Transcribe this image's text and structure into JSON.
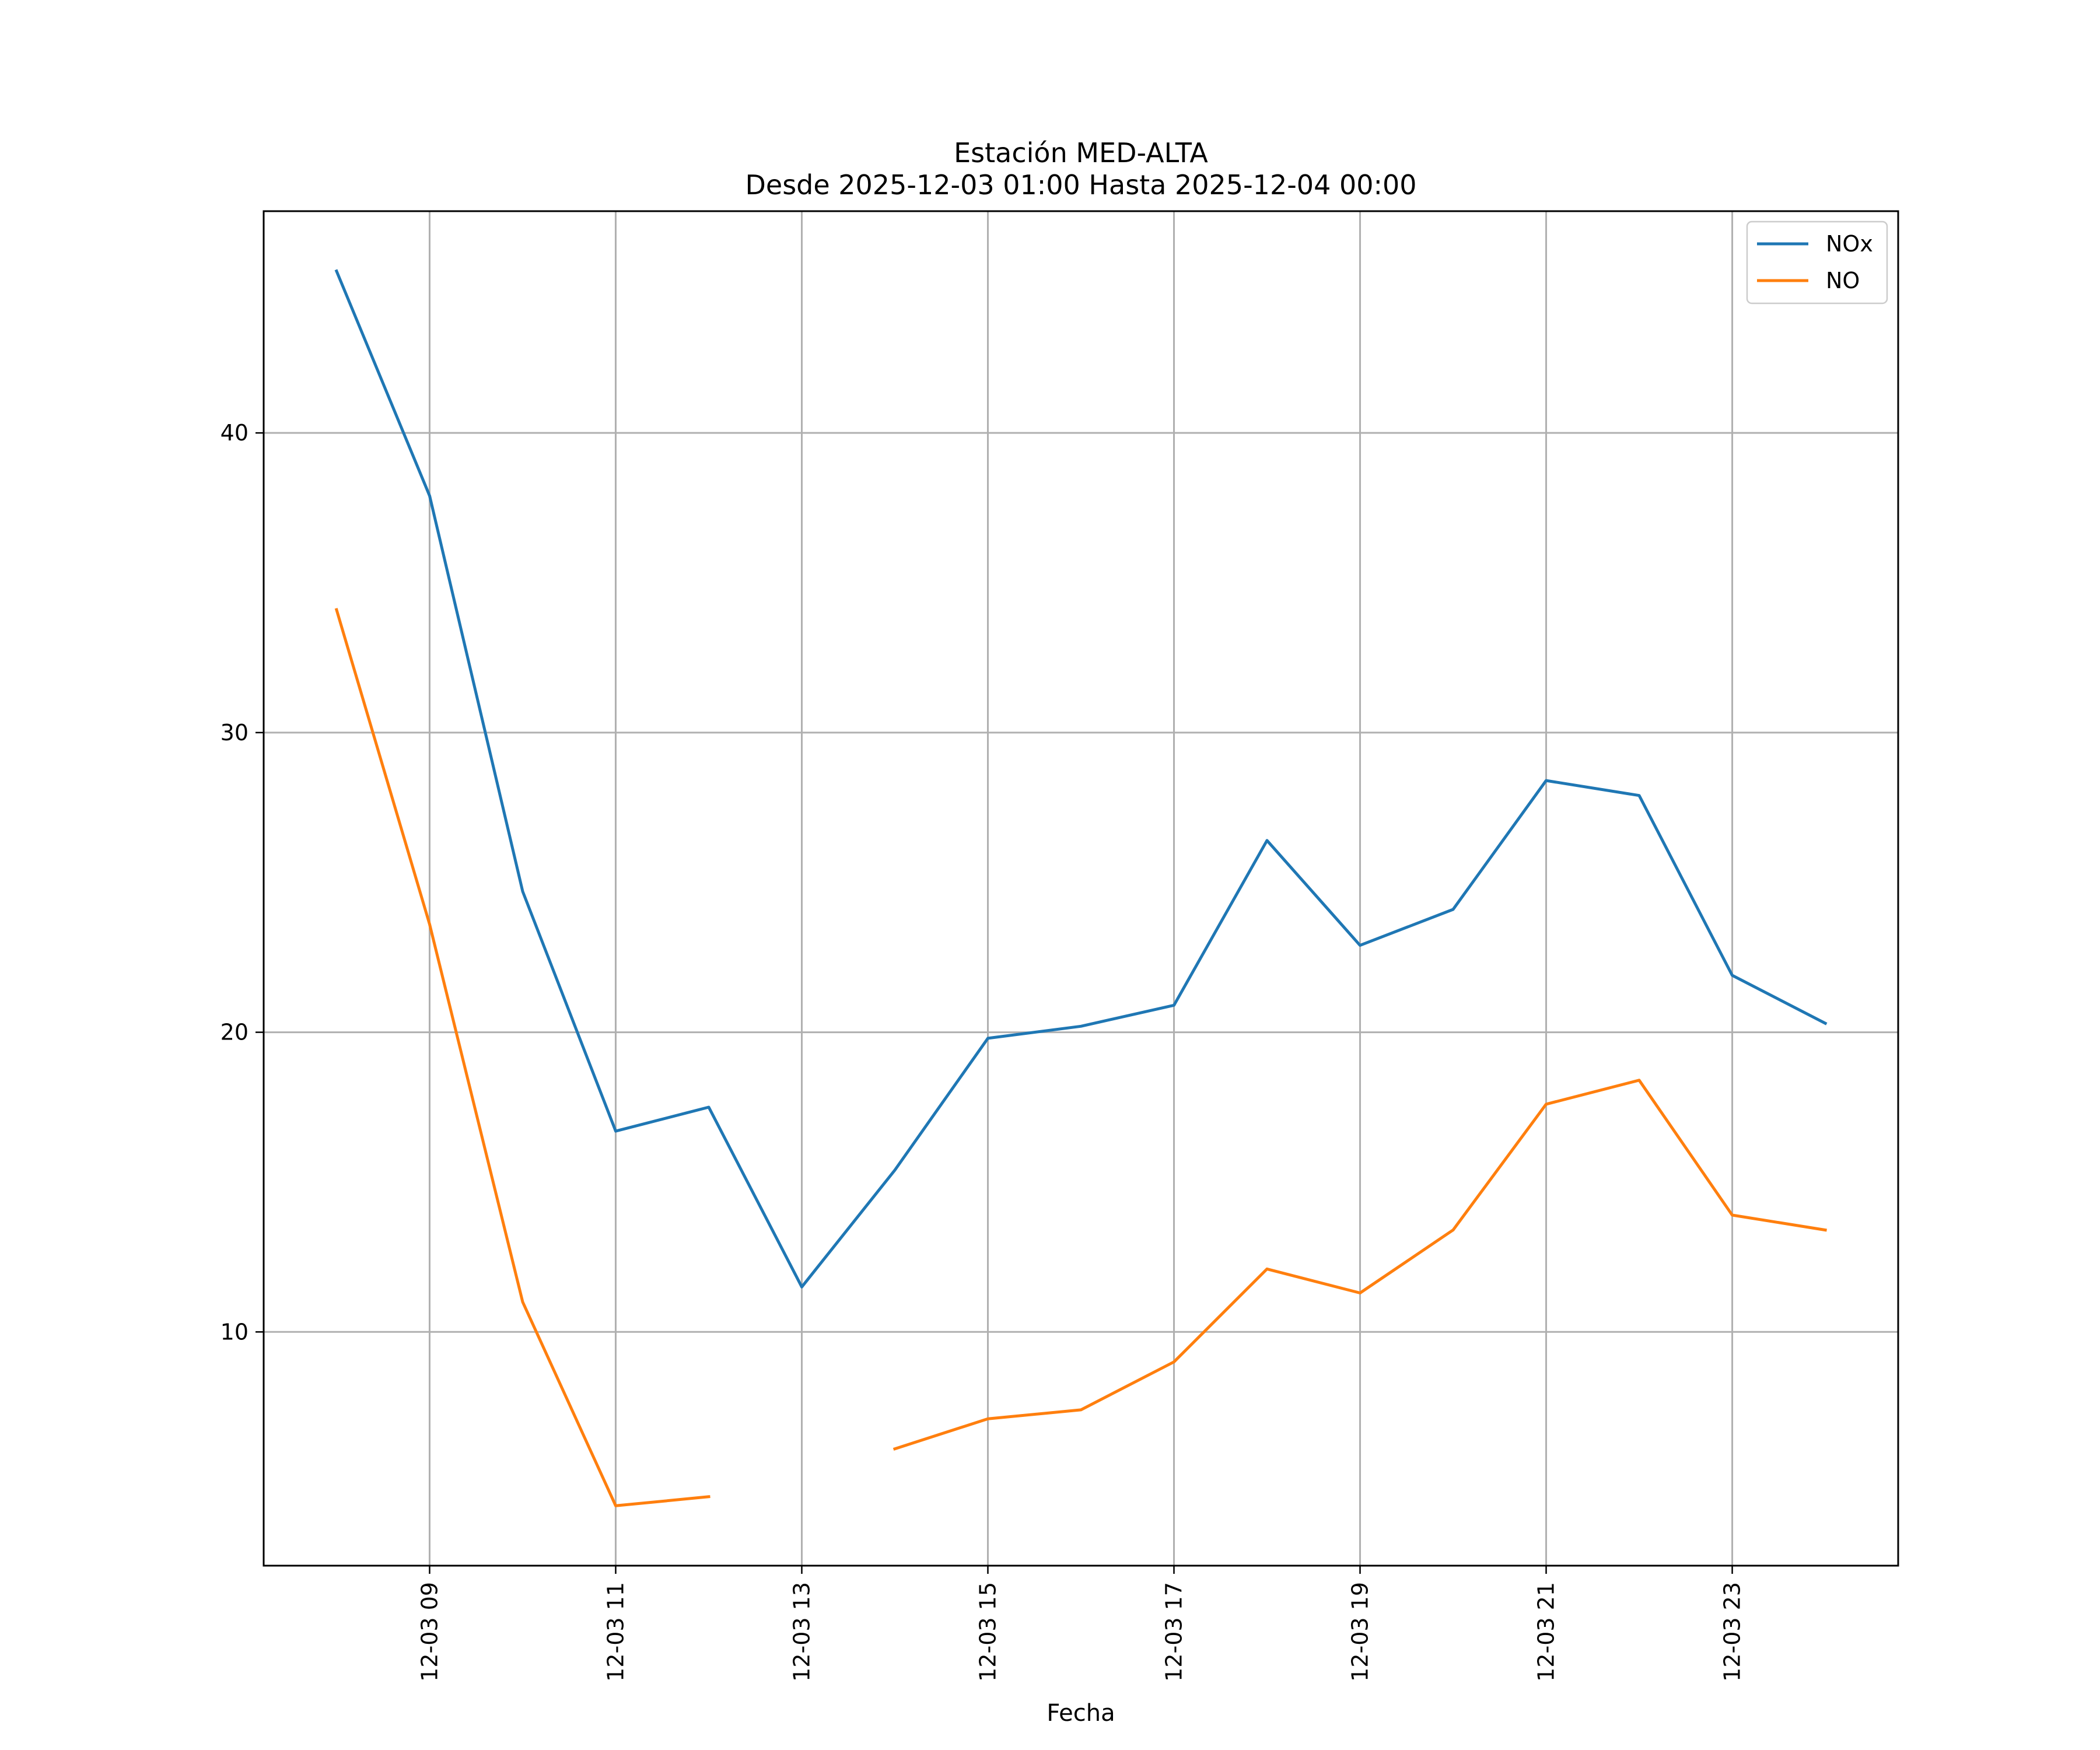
{
  "chart_data": {
    "type": "line",
    "title": "Estación MED-ALTA",
    "subtitle": "Desde 2025-12-03 01:00 Hasta 2025-12-04 00:00",
    "xlabel": "Fecha",
    "ylabel": "",
    "x": [
      "2025-12-03 08:00",
      "2025-12-03 09:00",
      "2025-12-03 10:00",
      "2025-12-03 11:00",
      "2025-12-03 12:00",
      "2025-12-03 13:00",
      "2025-12-03 14:00",
      "2025-12-03 15:00",
      "2025-12-03 16:00",
      "2025-12-03 17:00",
      "2025-12-03 18:00",
      "2025-12-03 19:00",
      "2025-12-03 20:00",
      "2025-12-03 21:00",
      "2025-12-03 22:00",
      "2025-12-03 23:00",
      "2025-12-04 00:00"
    ],
    "xlim": [
      "2025-12-03 07:13",
      "2025-12-04 00:47"
    ],
    "ylim": [
      2.2,
      47.4
    ],
    "xticks": [
      {
        "x": "2025-12-03 09:00",
        "label": "12-03 09"
      },
      {
        "x": "2025-12-03 11:00",
        "label": "12-03 11"
      },
      {
        "x": "2025-12-03 13:00",
        "label": "12-03 13"
      },
      {
        "x": "2025-12-03 15:00",
        "label": "12-03 15"
      },
      {
        "x": "2025-12-03 17:00",
        "label": "12-03 17"
      },
      {
        "x": "2025-12-03 19:00",
        "label": "12-03 19"
      },
      {
        "x": "2025-12-03 21:00",
        "label": "12-03 21"
      },
      {
        "x": "2025-12-03 23:00",
        "label": "12-03 23"
      }
    ],
    "yticks": [
      {
        "value": 10,
        "label": "10"
      },
      {
        "value": 20,
        "label": "20"
      },
      {
        "value": 30,
        "label": "30"
      },
      {
        "value": 40,
        "label": "40"
      }
    ],
    "grid": true,
    "legend": "top-right",
    "series": [
      {
        "name": "NOx",
        "color": "#1f77b4",
        "values": [
          45.4,
          37.9,
          24.7,
          16.7,
          17.5,
          11.5,
          15.4,
          19.8,
          20.2,
          20.9,
          26.4,
          22.9,
          24.1,
          28.4,
          27.9,
          21.9,
          20.3
        ]
      },
      {
        "name": "NO",
        "color": "#ff7f0e",
        "values": [
          34.1,
          23.6,
          11.0,
          4.2,
          4.5,
          null,
          6.1,
          7.1,
          7.4,
          9.0,
          12.1,
          11.3,
          13.4,
          17.6,
          18.4,
          13.9,
          13.4
        ]
      }
    ]
  }
}
